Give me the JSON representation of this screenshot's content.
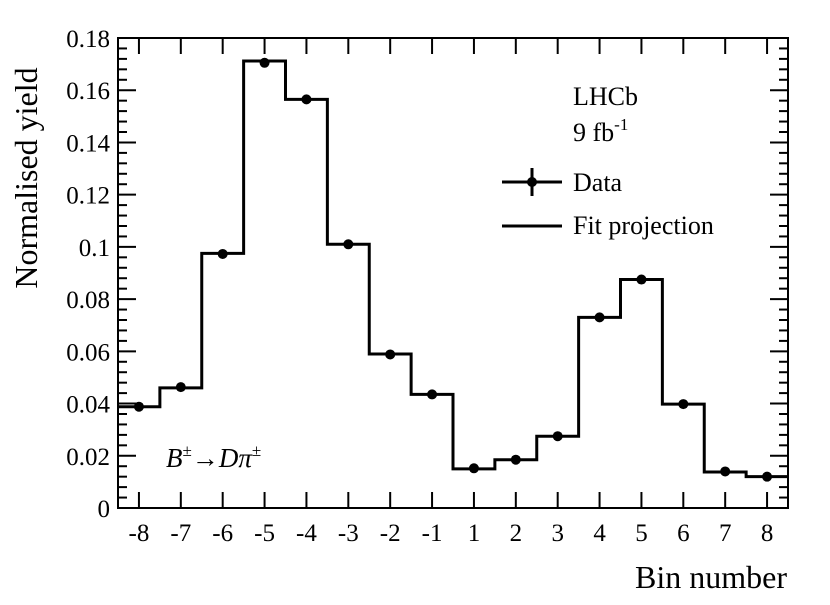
{
  "chart_data": {
    "type": "step",
    "xlabel": "Bin number",
    "ylabel": "Normalised yield",
    "x_tick_labels": [
      "-8",
      "-7",
      "-6",
      "-5",
      "-4",
      "-3",
      "-2",
      "-1",
      "1",
      "2",
      "3",
      "4",
      "5",
      "6",
      "7",
      "8"
    ],
    "ylim": [
      0,
      0.18
    ],
    "y_ticks": [
      0,
      0.02,
      0.04,
      0.06,
      0.08,
      0.1,
      0.12,
      0.14,
      0.16,
      0.18
    ],
    "y_tick_labels": [
      "0",
      "0.02",
      "0.04",
      "0.06",
      "0.08",
      "0.1",
      "0.12",
      "0.14",
      "0.16",
      "0.18"
    ],
    "series": [
      {
        "name": "Data",
        "style": "points",
        "values": [
          0.0388,
          0.0463,
          0.0973,
          0.1705,
          0.1565,
          0.101,
          0.0588,
          0.0435,
          0.0152,
          0.0185,
          0.0275,
          0.073,
          0.0875,
          0.0398,
          0.014,
          0.012
        ]
      },
      {
        "name": "Fit projection",
        "style": "step",
        "values": [
          0.0388,
          0.046,
          0.0975,
          0.1712,
          0.1565,
          0.101,
          0.059,
          0.0435,
          0.015,
          0.0185,
          0.0275,
          0.073,
          0.0875,
          0.0398,
          0.0138,
          0.012
        ]
      }
    ],
    "legend_position": "top-right",
    "annotations": {
      "experiment": "LHCb",
      "luminosity_base": "9 fb",
      "luminosity_exp": "-1",
      "decay_B": "B",
      "decay_pm1": "±",
      "decay_arrow": "→",
      "decay_D": "D",
      "decay_pi": "π",
      "decay_pm2": "±"
    },
    "colors": {
      "line": "#000000",
      "marker": "#000000"
    }
  }
}
